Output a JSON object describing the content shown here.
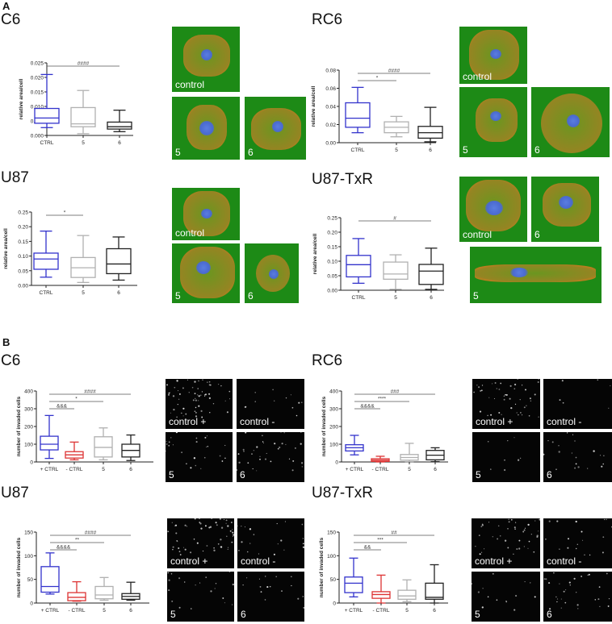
{
  "sections": {
    "A": "A",
    "B": "B"
  },
  "titles": {
    "a_c6": "C6",
    "a_rc6": "RC6",
    "a_u87": "U87",
    "a_u87txr": "U87-TxR",
    "b_c6": "C6",
    "b_rc6": "RC6",
    "b_u87": "U87",
    "b_u87txr": "U87-TxR"
  },
  "image_labels": {
    "control": "control",
    "five": "5",
    "six": "6",
    "control_plus": "control +",
    "control_minus": "control -"
  },
  "colors": {
    "ctrl": "#3333cc",
    "neg_ctrl": "#dd3333",
    "cmp5": "#b0b0b0",
    "cmp6": "#222222",
    "micro_bg": "#1d8a16",
    "invasion_bg": "#050505"
  },
  "chart_data": [
    {
      "id": "A-C6",
      "type": "box",
      "title": "C6",
      "ylabel": "relative area/cell",
      "categories": [
        "CTRL",
        "5",
        "6"
      ],
      "ylim": [
        0,
        0.025
      ],
      "yticks": [
        "0.000",
        "0.005",
        "0.010",
        "0.015",
        "0.020",
        "0.025"
      ],
      "series": [
        {
          "name": "CTRL",
          "min": 0.0027,
          "q1": 0.0042,
          "median": 0.006,
          "q3": 0.0093,
          "max": 0.021
        },
        {
          "name": "5",
          "min": 0.0006,
          "q1": 0.003,
          "median": 0.004,
          "q3": 0.0096,
          "max": 0.0155
        },
        {
          "name": "6",
          "min": 0.0013,
          "q1": 0.0022,
          "median": 0.003,
          "q3": 0.0046,
          "max": 0.0087
        }
      ],
      "annotations": [
        {
          "text": "####",
          "from": "CTRL",
          "to": "6"
        }
      ]
    },
    {
      "id": "A-RC6",
      "type": "box",
      "title": "RC6",
      "ylabel": "relative area/cell",
      "categories": [
        "CTRL",
        "5",
        "6"
      ],
      "ylim": [
        0,
        0.08
      ],
      "yticks": [
        "0.00",
        "0.02",
        "0.04",
        "0.06",
        "0.08"
      ],
      "series": [
        {
          "name": "CTRL",
          "min": 0.011,
          "q1": 0.017,
          "median": 0.027,
          "q3": 0.044,
          "max": 0.061
        },
        {
          "name": "5",
          "min": 0.0065,
          "q1": 0.011,
          "median": 0.017,
          "q3": 0.023,
          "max": 0.029
        },
        {
          "name": "6",
          "min": 0.001,
          "q1": 0.005,
          "median": 0.011,
          "q3": 0.018,
          "max": 0.039
        }
      ],
      "annotations": [
        {
          "text": "*",
          "from": "CTRL",
          "to": "5"
        },
        {
          "text": "####",
          "from": "CTRL",
          "to": "6"
        }
      ]
    },
    {
      "id": "A-U87",
      "type": "box",
      "title": "U87",
      "ylabel": "relative area/cell",
      "categories": [
        "CTRL",
        "5",
        "6"
      ],
      "ylim": [
        0,
        0.25
      ],
      "yticks": [
        "0.00",
        "0.05",
        "0.10",
        "0.15",
        "0.20",
        "0.25"
      ],
      "series": [
        {
          "name": "CTRL",
          "min": 0.028,
          "q1": 0.055,
          "median": 0.09,
          "q3": 0.11,
          "max": 0.185
        },
        {
          "name": "5",
          "min": 0.01,
          "q1": 0.027,
          "median": 0.06,
          "q3": 0.095,
          "max": 0.17
        },
        {
          "name": "6",
          "min": 0.018,
          "q1": 0.04,
          "median": 0.073,
          "q3": 0.125,
          "max": 0.165
        }
      ],
      "annotations": [
        {
          "text": "*",
          "from": "CTRL",
          "to": "5"
        }
      ]
    },
    {
      "id": "A-U87-TxR",
      "type": "box",
      "title": "U87-TxR",
      "ylabel": "relative area/cell",
      "categories": [
        "CTRL",
        "5",
        "6"
      ],
      "ylim": [
        0,
        0.25
      ],
      "yticks": [
        "0.00",
        "0.05",
        "0.10",
        "0.15",
        "0.20",
        "0.25"
      ],
      "series": [
        {
          "name": "CTRL",
          "min": 0.024,
          "q1": 0.046,
          "median": 0.088,
          "q3": 0.12,
          "max": 0.178
        },
        {
          "name": "5",
          "min": 0.003,
          "q1": 0.038,
          "median": 0.056,
          "q3": 0.097,
          "max": 0.122
        },
        {
          "name": "6",
          "min": 0.003,
          "q1": 0.02,
          "median": 0.066,
          "q3": 0.089,
          "max": 0.145
        }
      ],
      "annotations": [
        {
          "text": "#",
          "from": "CTRL",
          "to": "6"
        }
      ]
    },
    {
      "id": "B-C6",
      "type": "box",
      "title": "C6",
      "ylabel": "number of invaded cells",
      "categories": [
        "+ CTRL",
        "- CTRL",
        "5",
        "6"
      ],
      "ylim": [
        0,
        400
      ],
      "yticks": [
        "0",
        "100",
        "200",
        "300",
        "400"
      ],
      "series": [
        {
          "name": "+ CTRL",
          "min": 20,
          "q1": 68,
          "median": 100,
          "q3": 145,
          "max": 262
        },
        {
          "name": "- CTRL",
          "min": 12,
          "q1": 22,
          "median": 40,
          "q3": 58,
          "max": 112
        },
        {
          "name": "5",
          "min": 12,
          "q1": 28,
          "median": 82,
          "q3": 142,
          "max": 192
        },
        {
          "name": "6",
          "min": 8,
          "q1": 28,
          "median": 65,
          "q3": 100,
          "max": 152
        }
      ],
      "annotations": [
        {
          "text": "&&&",
          "from": "+ CTRL",
          "to": "- CTRL"
        },
        {
          "text": "*",
          "from": "+ CTRL",
          "to": "5"
        },
        {
          "text": "####",
          "from": "+ CTRL",
          "to": "6"
        }
      ]
    },
    {
      "id": "B-RC6",
      "type": "box",
      "title": "RC6",
      "ylabel": "number of invaded cells",
      "categories": [
        "+ CTRL",
        "- CTRL",
        "5",
        "6"
      ],
      "ylim": [
        0,
        400
      ],
      "yticks": [
        "0",
        "100",
        "200",
        "300",
        "400"
      ],
      "series": [
        {
          "name": "+ CTRL",
          "min": 40,
          "q1": 62,
          "median": 80,
          "q3": 97,
          "max": 150
        },
        {
          "name": "- CTRL",
          "min": 0,
          "q1": 3,
          "median": 10,
          "q3": 18,
          "max": 32
        },
        {
          "name": "5",
          "min": 2,
          "q1": 10,
          "median": 25,
          "q3": 42,
          "max": 105
        },
        {
          "name": "6",
          "min": 2,
          "q1": 12,
          "median": 38,
          "q3": 65,
          "max": 80
        }
      ],
      "annotations": [
        {
          "text": "&&&&",
          "from": "+ CTRL",
          "to": "- CTRL"
        },
        {
          "text": "****",
          "from": "+ CTRL",
          "to": "5"
        },
        {
          "text": "###",
          "from": "+ CTRL",
          "to": "6"
        }
      ]
    },
    {
      "id": "B-U87",
      "type": "box",
      "title": "U87",
      "ylabel": "number of invaded cells",
      "categories": [
        "+ CTRL",
        "- CTRL",
        "5",
        "6"
      ],
      "ylim": [
        0,
        150
      ],
      "yticks": [
        "0",
        "50",
        "100",
        "150"
      ],
      "series": [
        {
          "name": "+ CTRL",
          "min": 19,
          "q1": 23,
          "median": 35,
          "q3": 77,
          "max": 106
        },
        {
          "name": "- CTRL",
          "min": 4,
          "q1": 5,
          "median": 12,
          "q3": 22,
          "max": 45
        },
        {
          "name": "5",
          "min": 6,
          "q1": 9,
          "median": 17,
          "q3": 35,
          "max": 54
        },
        {
          "name": "6",
          "min": 6,
          "q1": 8,
          "median": 14,
          "q3": 20,
          "max": 44
        }
      ],
      "annotations": [
        {
          "text": "&&&&",
          "from": "+ CTRL",
          "to": "- CTRL"
        },
        {
          "text": "**",
          "from": "+ CTRL",
          "to": "5"
        },
        {
          "text": "####",
          "from": "+ CTRL",
          "to": "6"
        }
      ]
    },
    {
      "id": "B-U87-TxR",
      "type": "box",
      "title": "U87-TxR",
      "ylabel": "number of invaded cells",
      "categories": [
        "+ CTRL",
        "- CTRL",
        "5",
        "6"
      ],
      "ylim": [
        0,
        150
      ],
      "yticks": [
        "0",
        "50",
        "100",
        "150"
      ],
      "series": [
        {
          "name": "+ CTRL",
          "min": 13,
          "q1": 22,
          "median": 42,
          "q3": 55,
          "max": 95
        },
        {
          "name": "- CTRL",
          "min": 0,
          "q1": 10,
          "median": 18,
          "q3": 24,
          "max": 59
        },
        {
          "name": "5",
          "min": 3,
          "q1": 8,
          "median": 15,
          "q3": 27,
          "max": 49
        },
        {
          "name": "6",
          "min": 0,
          "q1": 8,
          "median": 12,
          "q3": 42,
          "max": 81
        }
      ],
      "annotations": [
        {
          "text": "&&",
          "from": "+ CTRL",
          "to": "- CTRL"
        },
        {
          "text": "***",
          "from": "+ CTRL",
          "to": "5"
        },
        {
          "text": "##",
          "from": "+ CTRL",
          "to": "6"
        }
      ]
    }
  ]
}
